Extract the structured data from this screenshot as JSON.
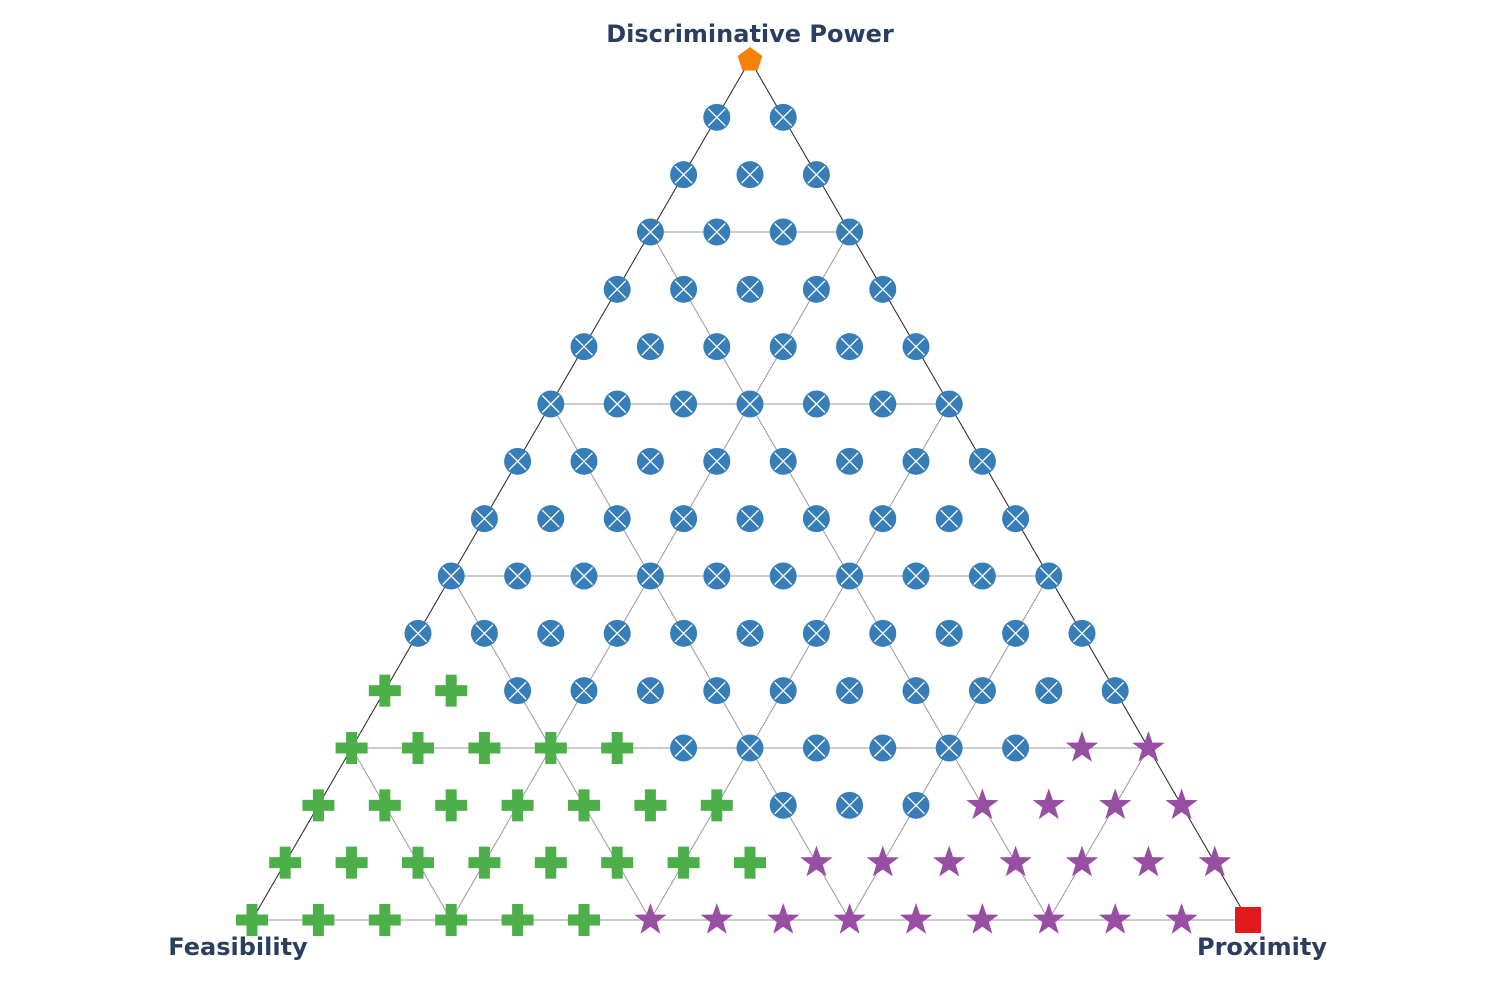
{
  "chart_data": {
    "type": "scatter",
    "subtype": "ternary",
    "title": "",
    "axes": {
      "top": "Discriminative Power",
      "left": "Feasibility",
      "right": "Proximity"
    },
    "resolution": 15,
    "grid_every": 3,
    "categories": {
      "discriminative": {
        "color": "#f68109",
        "marker": "pentagon"
      },
      "proximity": {
        "color": "#e31a1c",
        "marker": "square"
      },
      "balanced": {
        "color": "#377eb8",
        "marker": "circle-x"
      },
      "feasibility": {
        "color": "#4daf4a",
        "marker": "cross"
      },
      "proximity_mix": {
        "color": "#984ea3",
        "marker": "star"
      }
    },
    "rows": [
      {
        "discriminative": 15,
        "classes": [
          "discriminative"
        ]
      },
      {
        "discriminative": 14,
        "classes": [
          "balanced",
          "balanced"
        ]
      },
      {
        "discriminative": 13,
        "classes": [
          "balanced",
          "balanced",
          "balanced"
        ]
      },
      {
        "discriminative": 12,
        "classes": [
          "balanced",
          "balanced",
          "balanced",
          "balanced"
        ]
      },
      {
        "discriminative": 11,
        "classes": [
          "balanced",
          "balanced",
          "balanced",
          "balanced",
          "balanced"
        ]
      },
      {
        "discriminative": 10,
        "classes": [
          "balanced",
          "balanced",
          "balanced",
          "balanced",
          "balanced",
          "balanced"
        ]
      },
      {
        "discriminative": 9,
        "classes": [
          "balanced",
          "balanced",
          "balanced",
          "balanced",
          "balanced",
          "balanced",
          "balanced"
        ]
      },
      {
        "discriminative": 8,
        "classes": [
          "balanced",
          "balanced",
          "balanced",
          "balanced",
          "balanced",
          "balanced",
          "balanced",
          "balanced"
        ]
      },
      {
        "discriminative": 7,
        "classes": [
          "balanced",
          "balanced",
          "balanced",
          "balanced",
          "balanced",
          "balanced",
          "balanced",
          "balanced",
          "balanced"
        ]
      },
      {
        "discriminative": 6,
        "classes": [
          "balanced",
          "balanced",
          "balanced",
          "balanced",
          "balanced",
          "balanced",
          "balanced",
          "balanced",
          "balanced",
          "balanced"
        ]
      },
      {
        "discriminative": 5,
        "classes": [
          "balanced",
          "balanced",
          "balanced",
          "balanced",
          "balanced",
          "balanced",
          "balanced",
          "balanced",
          "balanced",
          "balanced",
          "balanced"
        ]
      },
      {
        "discriminative": 4,
        "classes": [
          "feasibility",
          "feasibility",
          "balanced",
          "balanced",
          "balanced",
          "balanced",
          "balanced",
          "balanced",
          "balanced",
          "balanced",
          "balanced",
          "balanced"
        ]
      },
      {
        "discriminative": 3,
        "classes": [
          "feasibility",
          "feasibility",
          "feasibility",
          "feasibility",
          "feasibility",
          "balanced",
          "balanced",
          "balanced",
          "balanced",
          "balanced",
          "balanced",
          "proximity_mix",
          "proximity_mix"
        ]
      },
      {
        "discriminative": 2,
        "classes": [
          "feasibility",
          "feasibility",
          "feasibility",
          "feasibility",
          "feasibility",
          "feasibility",
          "feasibility",
          "balanced",
          "balanced",
          "balanced",
          "proximity_mix",
          "proximity_mix",
          "proximity_mix",
          "proximity_mix"
        ]
      },
      {
        "discriminative": 1,
        "classes": [
          "feasibility",
          "feasibility",
          "feasibility",
          "feasibility",
          "feasibility",
          "feasibility",
          "feasibility",
          "feasibility",
          "proximity_mix",
          "proximity_mix",
          "proximity_mix",
          "proximity_mix",
          "proximity_mix",
          "proximity_mix",
          "proximity_mix"
        ]
      },
      {
        "discriminative": 0,
        "classes": [
          "feasibility",
          "feasibility",
          "feasibility",
          "feasibility",
          "feasibility",
          "feasibility",
          "proximity_mix",
          "proximity_mix",
          "proximity_mix",
          "proximity_mix",
          "proximity_mix",
          "proximity_mix",
          "proximity_mix",
          "proximity_mix",
          "proximity_mix",
          "proximity"
        ]
      }
    ]
  }
}
